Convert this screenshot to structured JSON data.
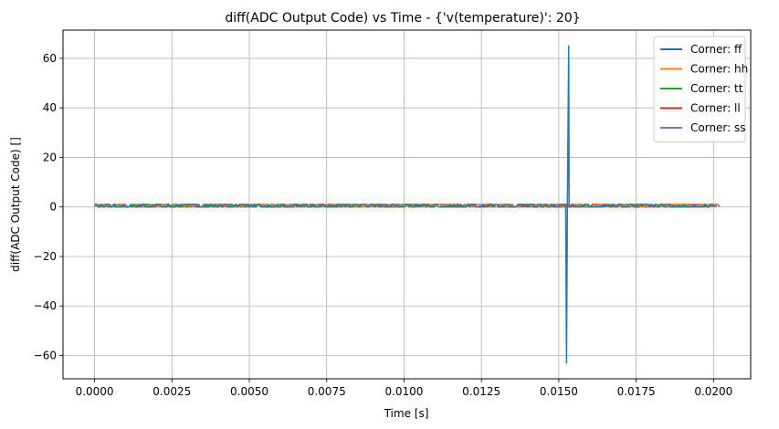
{
  "chart_data": {
    "type": "line",
    "title": "diff(ADC Output Code) vs Time - {'v(temperature)': 20}",
    "xlabel": "Time [s]",
    "ylabel": "diff(ADC Output Code) []",
    "xlim": [
      -0.00102,
      0.0212
    ],
    "ylim": [
      -69.4,
      71.4
    ],
    "xticks": [
      0.0,
      0.0025,
      0.005,
      0.0075,
      0.01,
      0.0125,
      0.015,
      0.0175,
      0.02
    ],
    "xtick_labels": [
      "0.0000",
      "0.0025",
      "0.0050",
      "0.0075",
      "0.0100",
      "0.0125",
      "0.0150",
      "0.0175",
      "0.0200"
    ],
    "yticks": [
      -60,
      -40,
      -20,
      0,
      20,
      40,
      60
    ],
    "ytick_labels": [
      "−60",
      "−40",
      "−20",
      "0",
      "20",
      "40",
      "60"
    ],
    "grid": true,
    "legend_position": "top-right",
    "series": [
      {
        "name": "Corner: ff",
        "color": "#1f77b4",
        "baseline_range": [
          0,
          1
        ],
        "x_span": [
          0.0,
          0.02
        ],
        "spikes": [
          {
            "x": 0.01525,
            "y": -63
          },
          {
            "x": 0.01532,
            "y": 65
          },
          {
            "x": 0.01538,
            "y": 0
          }
        ]
      },
      {
        "name": "Corner: hh",
        "color": "#ff7f0e",
        "baseline_range": [
          0,
          1
        ],
        "x_span": [
          0.0,
          0.0201
        ]
      },
      {
        "name": "Corner: tt",
        "color": "#2ca02c",
        "baseline_range": [
          0,
          1
        ],
        "x_span": [
          0.0,
          0.0201
        ]
      },
      {
        "name": "Corner: ll",
        "color": "#d62728",
        "baseline_range": [
          0,
          1
        ],
        "x_span": [
          0.0,
          0.0201
        ]
      },
      {
        "name": "Corner: ss",
        "color": "#9467bd",
        "baseline_range": [
          0,
          1
        ],
        "x_span": [
          0.0,
          0.0202
        ]
      }
    ]
  }
}
